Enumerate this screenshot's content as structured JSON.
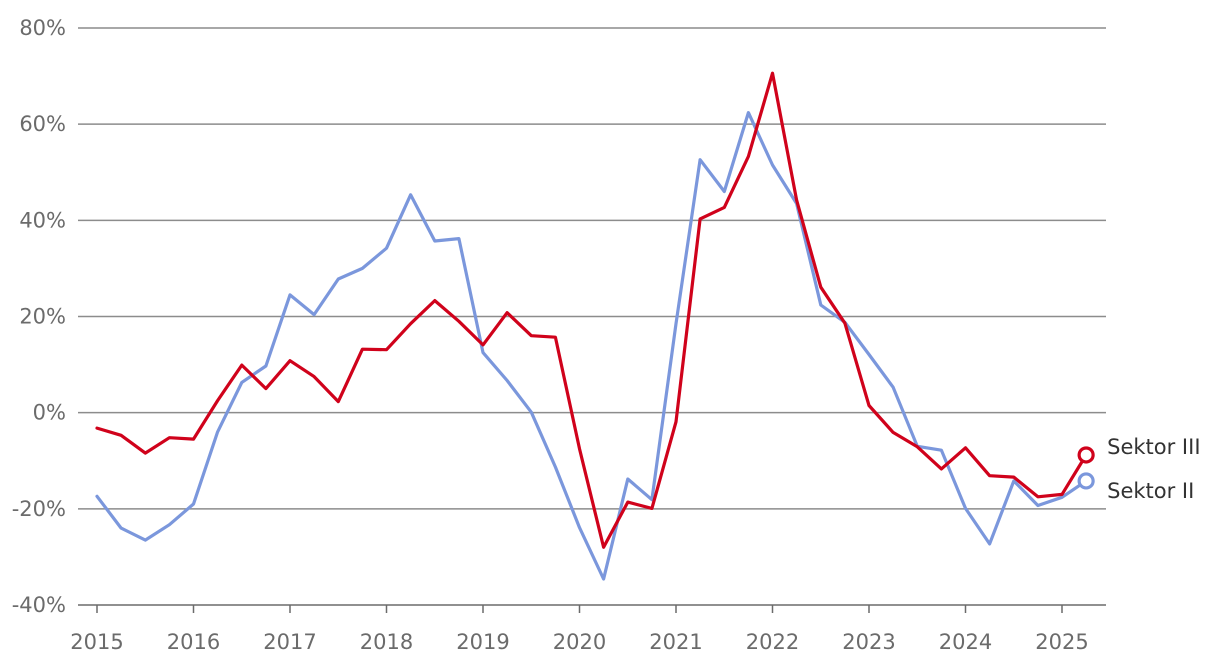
{
  "chart_data": {
    "type": "line",
    "title": "",
    "xlabel": "",
    "ylabel": "",
    "ylim": [
      -40,
      80
    ],
    "yticks": [
      -40,
      -20,
      0,
      20,
      40,
      60,
      80
    ],
    "ytick_labels": [
      "-40%",
      "-20%",
      "0%",
      "20%",
      "40%",
      "60%",
      "80%"
    ],
    "xlim": [
      2015,
      2025.45
    ],
    "xticks": [
      2015,
      2016,
      2017,
      2018,
      2019,
      2020,
      2021,
      2022,
      2023,
      2024,
      2025
    ],
    "xtick_labels": [
      "2015",
      "2016",
      "2017",
      "2018",
      "2019",
      "2020",
      "2021",
      "2022",
      "2023",
      "2024",
      "2025"
    ],
    "grid": true,
    "legend": "end-of-line labels",
    "x": [
      2015.0,
      2015.25,
      2015.5,
      2015.75,
      2016.0,
      2016.25,
      2016.5,
      2016.75,
      2017.0,
      2017.25,
      2017.5,
      2017.75,
      2018.0,
      2018.25,
      2018.5,
      2018.75,
      2019.0,
      2019.25,
      2019.5,
      2019.75,
      2020.0,
      2020.25,
      2020.5,
      2020.75,
      2021.0,
      2021.25,
      2021.5,
      2021.75,
      2022.0,
      2022.25,
      2022.5,
      2022.75,
      2023.0,
      2023.25,
      2023.5,
      2023.75,
      2024.0,
      2024.25,
      2024.5,
      2024.75,
      2025.0,
      2025.25
    ],
    "series": [
      {
        "name": "Sektor III",
        "color": "#d0021b",
        "values": [
          -3.2,
          -4.7,
          -8.4,
          -5.2,
          -5.5,
          2.5,
          9.9,
          5.0,
          10.8,
          7.5,
          2.3,
          13.2,
          13.1,
          18.5,
          23.3,
          19.0,
          14.1,
          20.8,
          16.0,
          15.7,
          -7.5,
          -28.0,
          -18.6,
          -19.9,
          -1.9,
          40.3,
          42.7,
          53.3,
          70.6,
          44.2,
          26.1,
          18.6,
          1.5,
          -4.1,
          -7.1,
          -11.7,
          -7.3,
          -13.1,
          -13.4,
          -17.5,
          -17.0,
          -8.8
        ]
      },
      {
        "name": "Sektor II",
        "color": "#7b97dc",
        "values": [
          -17.4,
          -24.0,
          -26.5,
          -23.3,
          -19.0,
          -4.0,
          6.3,
          9.7,
          24.5,
          20.4,
          27.8,
          30.0,
          34.2,
          45.3,
          35.7,
          36.2,
          12.5,
          6.7,
          0.1,
          -11.3,
          -23.9,
          -34.6,
          -13.8,
          -18.1,
          18.5,
          52.6,
          46.0,
          62.4,
          51.5,
          43.5,
          22.4,
          18.8,
          12.1,
          5.3,
          -7.0,
          -7.8,
          -19.9,
          -27.3,
          -14.2,
          -19.3,
          -17.6,
          -14.2
        ]
      }
    ]
  }
}
